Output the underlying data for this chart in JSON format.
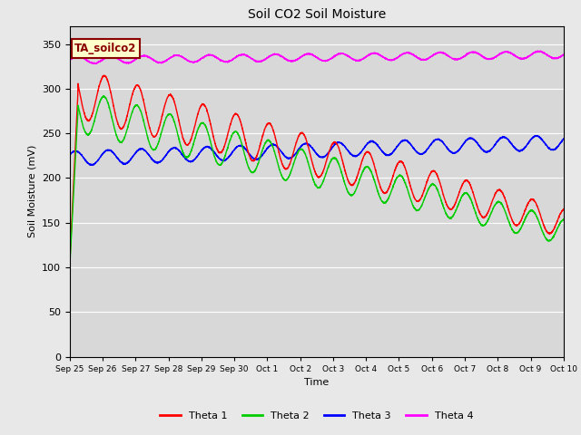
{
  "title": "Soil CO2 Soil Moisture",
  "xlabel": "Time",
  "ylabel": "Soil Moisture (mV)",
  "ylim": [
    0,
    370
  ],
  "yticks": [
    0,
    50,
    100,
    150,
    200,
    250,
    300,
    350
  ],
  "label_box_text": "TA_soilco2",
  "legend_labels": [
    "Theta 1",
    "Theta 2",
    "Theta 3",
    "Theta 4"
  ],
  "colors": [
    "#ff0000",
    "#00cc00",
    "#0000ff",
    "#ff00ff"
  ],
  "fig_bg_color": "#e8e8e8",
  "ax_bg_color": "#d8d8d8",
  "x_tick_labels": [
    "Sep 25",
    "Sep 26",
    "Sep 27",
    "Sep 28",
    "Sep 29",
    "Sep 30",
    "Oct 1",
    "Oct 2",
    "Oct 3",
    "Oct 4",
    "Oct 5",
    "Oct 6",
    "Oct 7",
    "Oct 8",
    "Oct 9",
    "Oct 10"
  ],
  "num_points": 3600,
  "num_days": 15
}
